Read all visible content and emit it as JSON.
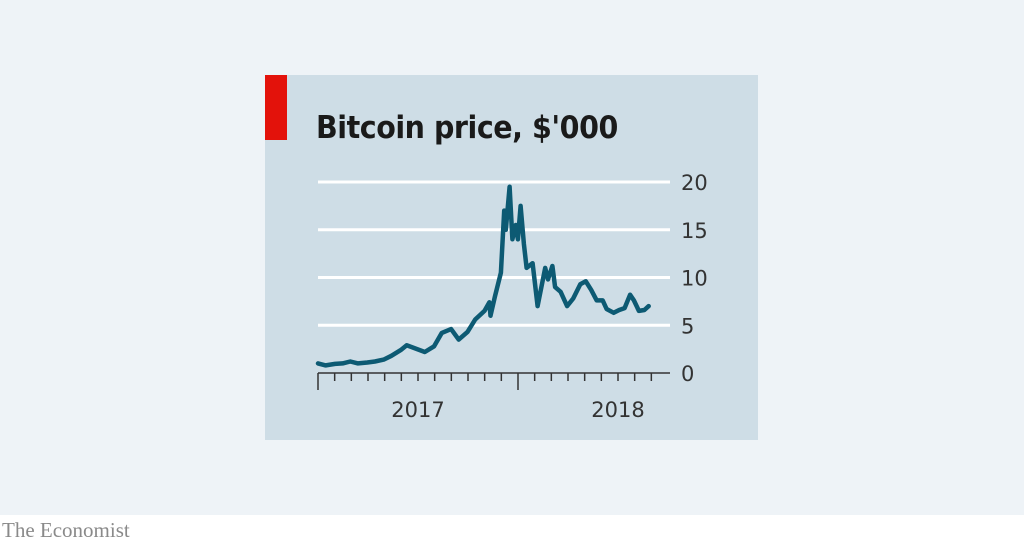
{
  "footer": {
    "brand": "The Economist"
  },
  "colors": {
    "accent": "#e3120b",
    "line": "#0d5a73",
    "panel": "#cedde6",
    "background": "#eef3f7"
  },
  "chart_data": {
    "type": "line",
    "title": "Bitcoin price, $'000",
    "xlabel": "",
    "ylabel": "",
    "ylim": [
      0,
      20
    ],
    "yticks": [
      "0",
      "5",
      "10",
      "15",
      "20"
    ],
    "ytick_values": [
      0,
      5,
      10,
      15,
      20
    ],
    "xtick_labels": [
      "2017",
      "2018"
    ],
    "xlim": [
      "2017-01-01",
      "2018-09-01"
    ],
    "grid": true,
    "y_axis_side": "right",
    "series": [
      {
        "x": [
          "2017-01-01",
          "2017-01-15",
          "2017-02-01",
          "2017-02-15",
          "2017-03-01",
          "2017-03-15",
          "2017-04-01",
          "2017-04-15",
          "2017-05-01",
          "2017-05-15",
          "2017-06-01",
          "2017-06-12",
          "2017-07-01",
          "2017-07-15",
          "2017-08-01",
          "2017-08-15",
          "2017-09-01",
          "2017-09-15",
          "2017-10-01",
          "2017-10-15",
          "2017-11-01",
          "2017-11-10",
          "2017-11-12",
          "2017-11-20",
          "2017-12-01",
          "2017-12-07",
          "2017-12-10",
          "2017-12-17",
          "2017-12-22",
          "2017-12-28",
          "2018-01-01",
          "2018-01-06",
          "2018-01-12",
          "2018-01-17",
          "2018-01-28",
          "2018-02-06",
          "2018-02-20",
          "2018-02-25",
          "2018-03-05",
          "2018-03-10",
          "2018-03-20",
          "2018-04-01",
          "2018-04-12",
          "2018-04-25",
          "2018-05-05",
          "2018-05-15",
          "2018-05-25",
          "2018-06-05",
          "2018-06-12",
          "2018-06-25",
          "2018-07-05",
          "2018-07-15",
          "2018-07-25",
          "2018-08-01",
          "2018-08-10",
          "2018-08-20",
          "2018-08-28"
        ],
        "y": [
          1.0,
          0.8,
          0.95,
          1.0,
          1.2,
          1.0,
          1.1,
          1.2,
          1.4,
          1.8,
          2.4,
          2.9,
          2.5,
          2.2,
          2.8,
          4.2,
          4.6,
          3.5,
          4.3,
          5.6,
          6.5,
          7.4,
          6.0,
          8.0,
          10.5,
          17.0,
          15.0,
          19.5,
          14.0,
          15.5,
          14.0,
          17.5,
          13.5,
          11.0,
          11.5,
          7.0,
          11.0,
          9.8,
          11.2,
          9.0,
          8.5,
          7.0,
          7.8,
          9.3,
          9.6,
          8.7,
          7.6,
          7.6,
          6.7,
          6.3,
          6.6,
          6.8,
          8.2,
          7.6,
          6.5,
          6.6,
          7.0
        ]
      }
    ]
  }
}
